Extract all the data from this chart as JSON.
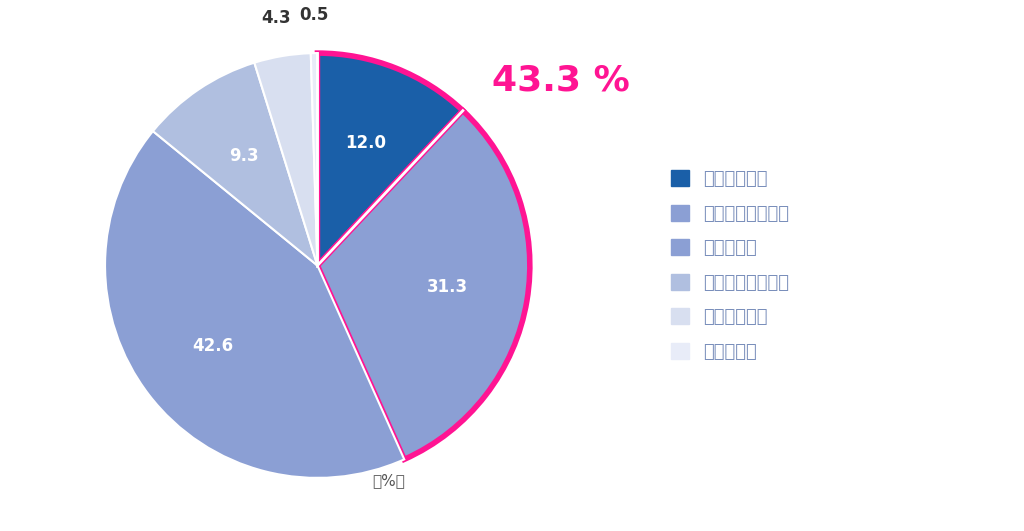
{
  "labels": [
    "難しくなった",
    "やや難しくなった",
    "変わらない",
    "やや易しくなった",
    "易しくなった",
    "わからない"
  ],
  "values": [
    12.0,
    31.3,
    42.6,
    9.3,
    4.3,
    0.5
  ],
  "colors": [
    "#1a5fa8",
    "#8b9fd4",
    "#8b9fd4",
    "#b0bfe0",
    "#d8dff0",
    "#e8ecf8"
  ],
  "highlight_segments": [
    0,
    1
  ],
  "highlight_color": "#ff1493",
  "highlight_linewidth": 4.0,
  "annotation_text": "43.3 %",
  "annotation_color": "#ff1493",
  "annotation_fontsize": 26,
  "annotation_fontweight": "bold",
  "percent_label": "（%）",
  "legend_labels": [
    "難しくなった",
    "やや難しくなった",
    "変わらない",
    "やや易しくなった",
    "易しくなった",
    "わからない"
  ],
  "legend_marker_colors": [
    "#1a5fa8",
    "#8b9fd4",
    "#8b9fd4",
    "#b0bfe0",
    "#d8dff0",
    "#e8ecf8"
  ],
  "legend_text_color": "#8b9fd4",
  "startangle": 90,
  "background_color": "#ffffff",
  "label_fontsize": 12,
  "legend_fontsize": 13,
  "inside_label_threshold": 9.0,
  "outside_label_color": "#333333",
  "inside_label_color": "white"
}
